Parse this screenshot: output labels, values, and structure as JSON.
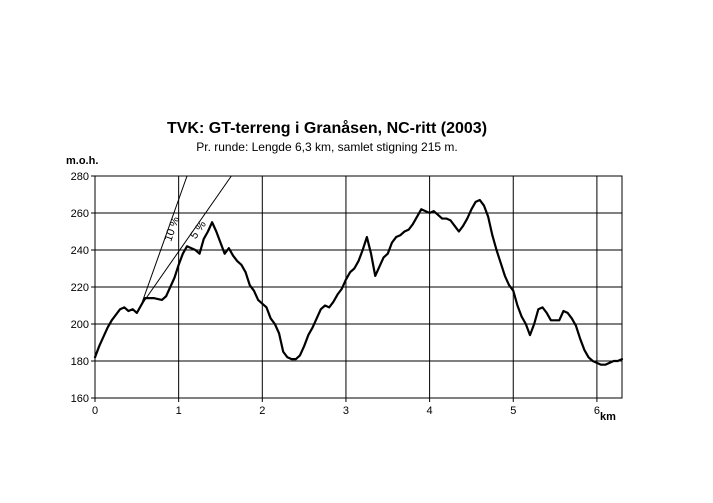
{
  "chart_data": {
    "type": "line",
    "title": "TVK: GT-terreng i Granåsen, NC-ritt (2003)",
    "subtitle": "Pr. runde: Lengde 6,3 km, samlet stigning 215 m.",
    "xlabel": "km",
    "ylabel": "m.o.h.",
    "xlim": [
      0,
      6.3
    ],
    "ylim": [
      160,
      280
    ],
    "x_ticks": [
      0,
      1,
      2,
      3,
      4,
      5,
      6
    ],
    "y_ticks": [
      160,
      180,
      200,
      220,
      240,
      260,
      280
    ],
    "x_tick_labels": [
      "0",
      "1",
      "2",
      "3",
      "4",
      "5",
      "6"
    ],
    "y_tick_labels": [
      "160",
      "180",
      "200",
      "220",
      "240",
      "260",
      "280"
    ],
    "grid": true,
    "gradient_lines": [
      {
        "label": "10 %",
        "x0": 0.55,
        "y0": 210,
        "x1": 1.1,
        "y1": 280
      },
      {
        "label": "5 %",
        "x0": 0.55,
        "y0": 210,
        "x1": 1.63,
        "y1": 280
      }
    ],
    "series": [
      {
        "x": [
          0.0,
          0.05,
          0.1,
          0.15,
          0.2,
          0.25,
          0.3,
          0.35,
          0.4,
          0.45,
          0.5,
          0.55,
          0.6,
          0.7,
          0.8,
          0.85,
          0.9,
          0.95,
          1.0,
          1.05,
          1.1,
          1.15,
          1.2,
          1.25,
          1.3,
          1.35,
          1.4,
          1.45,
          1.5,
          1.55,
          1.6,
          1.65,
          1.7,
          1.75,
          1.8,
          1.85,
          1.9,
          1.95,
          2.0,
          2.05,
          2.1,
          2.15,
          2.2,
          2.25,
          2.3,
          2.35,
          2.4,
          2.45,
          2.5,
          2.55,
          2.6,
          2.65,
          2.7,
          2.75,
          2.8,
          2.85,
          2.9,
          2.95,
          3.0,
          3.05,
          3.1,
          3.15,
          3.2,
          3.25,
          3.3,
          3.35,
          3.4,
          3.45,
          3.5,
          3.55,
          3.6,
          3.65,
          3.7,
          3.75,
          3.8,
          3.85,
          3.9,
          3.95,
          4.0,
          4.05,
          4.1,
          4.15,
          4.2,
          4.25,
          4.3,
          4.35,
          4.4,
          4.45,
          4.5,
          4.55,
          4.6,
          4.65,
          4.7,
          4.75,
          4.8,
          4.85,
          4.9,
          4.95,
          5.0,
          5.05,
          5.1,
          5.15,
          5.2,
          5.25,
          5.3,
          5.35,
          5.4,
          5.45,
          5.5,
          5.55,
          5.6,
          5.65,
          5.7,
          5.75,
          5.8,
          5.85,
          5.9,
          5.95,
          6.0,
          6.05,
          6.1,
          6.15,
          6.2,
          6.25,
          6.3
        ],
        "values": [
          182,
          188,
          193,
          198,
          202,
          205,
          208,
          209,
          207,
          208,
          206,
          210,
          214,
          214,
          213,
          215,
          220,
          225,
          232,
          238,
          242,
          241,
          240,
          238,
          246,
          250,
          255,
          250,
          244,
          238,
          241,
          237,
          234,
          232,
          228,
          221,
          218,
          213,
          211,
          209,
          203,
          200,
          195,
          185,
          182,
          181,
          181,
          183,
          188,
          194,
          198,
          203,
          208,
          210,
          209,
          212,
          216,
          219,
          224,
          228,
          230,
          234,
          240,
          247,
          238,
          226,
          231,
          236,
          238,
          244,
          247,
          248,
          250,
          251,
          254,
          258,
          262,
          261,
          260,
          261,
          259,
          257,
          257,
          256,
          253,
          250,
          253,
          257,
          262,
          266,
          267,
          264,
          258,
          248,
          240,
          233,
          226,
          221,
          218,
          210,
          204,
          200,
          194,
          200,
          208,
          209,
          206,
          202,
          202,
          202,
          207,
          206,
          203,
          199,
          192,
          186,
          182,
          180,
          179,
          178,
          178,
          179,
          180,
          180,
          181
        ]
      }
    ]
  }
}
